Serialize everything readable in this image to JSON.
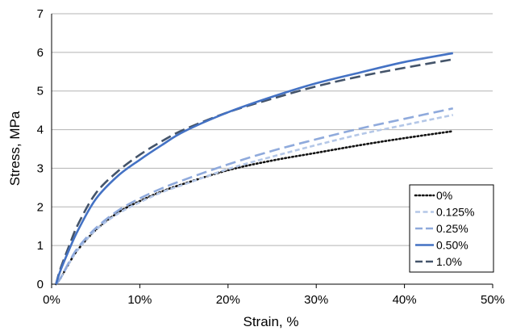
{
  "chart_data": {
    "type": "line",
    "xlabel": "Strain, %",
    "ylabel": "Stress, MPa",
    "xlim": [
      0,
      0.5
    ],
    "ylim": [
      0,
      7
    ],
    "x_tick_values": [
      0,
      0.1,
      0.2,
      0.3,
      0.4,
      0.5
    ],
    "x_tick_labels": [
      "0%",
      "10%",
      "20%",
      "30%",
      "40%",
      "50%"
    ],
    "y_tick_values": [
      0,
      1,
      2,
      3,
      4,
      5,
      6,
      7
    ],
    "y_tick_labels": [
      "0",
      "1",
      "2",
      "3",
      "4",
      "5",
      "6",
      "7"
    ],
    "grid": "horizontal",
    "legend_position": "bottom-right",
    "series": [
      {
        "name": "0%",
        "color": "#111111",
        "dash": "dotted",
        "x": [
          0.005,
          0.01,
          0.02,
          0.03,
          0.05,
          0.075,
          0.1,
          0.125,
          0.15,
          0.2,
          0.25,
          0.3,
          0.35,
          0.4,
          0.455
        ],
        "y": [
          0.0,
          0.15,
          0.55,
          0.9,
          1.4,
          1.85,
          2.15,
          2.4,
          2.6,
          2.95,
          3.2,
          3.4,
          3.6,
          3.78,
          3.96
        ]
      },
      {
        "name": "0.125%",
        "color": "#b4c7e7",
        "dash": "short-dash",
        "x": [
          0.005,
          0.01,
          0.02,
          0.03,
          0.05,
          0.075,
          0.1,
          0.125,
          0.15,
          0.2,
          0.25,
          0.3,
          0.35,
          0.4,
          0.455
        ],
        "y": [
          0.0,
          0.15,
          0.55,
          0.9,
          1.4,
          1.82,
          2.12,
          2.38,
          2.58,
          2.98,
          3.3,
          3.6,
          3.88,
          4.12,
          4.38
        ]
      },
      {
        "name": "0.25%",
        "color": "#8faadc",
        "dash": "long-dash",
        "x": [
          0.005,
          0.01,
          0.02,
          0.03,
          0.05,
          0.075,
          0.1,
          0.125,
          0.15,
          0.2,
          0.25,
          0.3,
          0.35,
          0.4,
          0.455
        ],
        "y": [
          0.0,
          0.15,
          0.58,
          0.95,
          1.45,
          1.9,
          2.22,
          2.48,
          2.7,
          3.1,
          3.45,
          3.75,
          4.03,
          4.28,
          4.55
        ]
      },
      {
        "name": "0.50%",
        "color": "#4472c4",
        "dash": "solid",
        "x": [
          0.005,
          0.01,
          0.02,
          0.03,
          0.05,
          0.075,
          0.1,
          0.125,
          0.15,
          0.2,
          0.25,
          0.3,
          0.35,
          0.4,
          0.455
        ],
        "y": [
          0.0,
          0.35,
          0.9,
          1.4,
          2.2,
          2.8,
          3.22,
          3.6,
          3.95,
          4.45,
          4.85,
          5.2,
          5.48,
          5.75,
          5.98
        ]
      },
      {
        "name": "1.0%",
        "color": "#44546a",
        "dash": "long-dash",
        "x": [
          0.005,
          0.01,
          0.02,
          0.03,
          0.05,
          0.075,
          0.1,
          0.125,
          0.15,
          0.2,
          0.25,
          0.3,
          0.35,
          0.4,
          0.455
        ],
        "y": [
          0.0,
          0.4,
          1.0,
          1.55,
          2.35,
          2.92,
          3.35,
          3.7,
          4.0,
          4.45,
          4.8,
          5.12,
          5.38,
          5.6,
          5.82
        ]
      }
    ]
  }
}
